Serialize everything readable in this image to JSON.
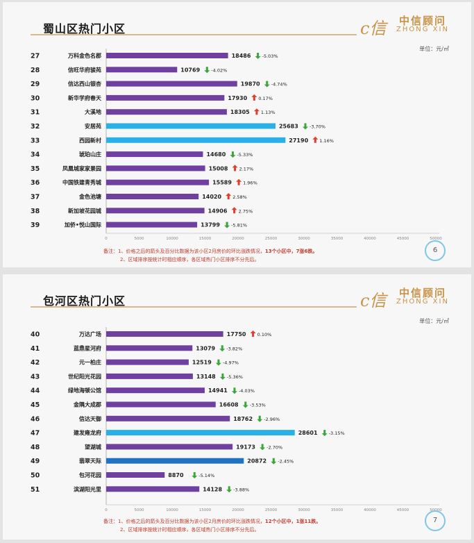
{
  "slides": [
    {
      "title": "蜀山区热门小区",
      "unit": "单位：元/㎡",
      "page_number": "6",
      "note_prefix": "备注：",
      "note_line1": "1、价格之后的箭头及百分比数据为该小区2月房价的环比涨跌情况，",
      "note_highlight": "13个小区中，7涨6跌。",
      "note_line2": "2、区域排序按统计时相应顺序，各区域热门小区排序不分先后。"
    },
    {
      "title": "包河区热门小区",
      "unit": "单位：元/㎡",
      "page_number": "7",
      "note_prefix": "备注：",
      "note_line1": "1、价格之后的箭头及百分比数据为该小区2月房价的环比涨跌情况，",
      "note_highlight": "12个小区中，1涨11跌。",
      "note_line2": "2、区域排序按统计时相应顺序，各区域热门小区排序不分先后。"
    }
  ],
  "logo": {
    "mark": "c信",
    "cn": "中信顾问",
    "en": "ZHONG XIN"
  },
  "colors": {
    "purple": "#7040a0",
    "blue": "#2ab0e6",
    "dark_blue": "#1f73c2",
    "up": "#e53b2c",
    "down": "#3aa63a"
  },
  "chart_data": [
    {
      "type": "bar",
      "orientation": "horizontal",
      "xlim": [
        0,
        50000
      ],
      "ticks": [
        0,
        5000,
        10000,
        15000,
        20000,
        25000,
        30000,
        35000,
        40000,
        45000,
        50000
      ],
      "rows": [
        {
          "rank": "27",
          "name": "万科金色名郡",
          "value": 18486,
          "dir": "down",
          "pct": "-5.03%",
          "color": "purple"
        },
        {
          "rank": "28",
          "name": "信旺华府骏苑",
          "value": 10769,
          "dir": "down",
          "pct": "-4.02%",
          "color": "purple"
        },
        {
          "rank": "29",
          "name": "信达西山银杏",
          "value": 19870,
          "dir": "down",
          "pct": "-4.74%",
          "color": "purple"
        },
        {
          "rank": "30",
          "name": "新华学府春天",
          "value": 17930,
          "dir": "up",
          "pct": "0.17%",
          "color": "purple"
        },
        {
          "rank": "31",
          "name": "大溪地",
          "value": 18305,
          "dir": "up",
          "pct": "1.13%",
          "color": "purple"
        },
        {
          "rank": "32",
          "name": "安居苑",
          "value": 25683,
          "dir": "down",
          "pct": "-3.70%",
          "color": "blue"
        },
        {
          "rank": "33",
          "name": "西园新村",
          "value": 27190,
          "dir": "up",
          "pct": "1.16%",
          "color": "blue"
        },
        {
          "rank": "34",
          "name": "琥珀山庄",
          "value": 14680,
          "dir": "down",
          "pct": "-5.33%",
          "color": "purple"
        },
        {
          "rank": "35",
          "name": "凤凰城家家景园",
          "value": 15008,
          "dir": "up",
          "pct": "2.17%",
          "color": "purple"
        },
        {
          "rank": "36",
          "name": "中国铁建青秀城",
          "value": 15589,
          "dir": "up",
          "pct": "1.96%",
          "color": "purple"
        },
        {
          "rank": "37",
          "name": "金色池塘",
          "value": 14020,
          "dir": "up",
          "pct": "2.58%",
          "color": "purple"
        },
        {
          "rank": "38",
          "name": "新加坡花园城",
          "value": 14906,
          "dir": "up",
          "pct": "2.75%",
          "color": "purple"
        },
        {
          "rank": "39",
          "name": "加侨•悦山国际",
          "value": 13799,
          "dir": "down",
          "pct": "-5.81%",
          "color": "purple"
        }
      ]
    },
    {
      "type": "bar",
      "orientation": "horizontal",
      "xlim": [
        0,
        50000
      ],
      "ticks": [
        0,
        5000,
        10000,
        15000,
        20000,
        25000,
        30000,
        35000,
        40000,
        45000,
        50000
      ],
      "rows": [
        {
          "rank": "40",
          "name": "万达广场",
          "value": 17750,
          "dir": "up",
          "pct": "0.10%",
          "color": "purple"
        },
        {
          "rank": "41",
          "name": "蓝鼎星河府",
          "value": 13079,
          "dir": "down",
          "pct": "-3.82%",
          "color": "purple"
        },
        {
          "rank": "42",
          "name": "元一柏庄",
          "value": 12519,
          "dir": "down",
          "pct": "-4.97%",
          "color": "purple"
        },
        {
          "rank": "43",
          "name": "世纪阳光花园",
          "value": 13148,
          "dir": "down",
          "pct": "-5.36%",
          "color": "purple"
        },
        {
          "rank": "44",
          "name": "绿地海顿公馆",
          "value": 14941,
          "dir": "down",
          "pct": "-4.03%",
          "color": "purple"
        },
        {
          "rank": "45",
          "name": "金隅大成郡",
          "value": 16608,
          "dir": "down",
          "pct": "-3.53%",
          "color": "purple"
        },
        {
          "rank": "46",
          "name": "信达天御",
          "value": 18762,
          "dir": "down",
          "pct": "-2.96%",
          "color": "purple"
        },
        {
          "rank": "47",
          "name": "建发雍龙府",
          "value": 28601,
          "dir": "down",
          "pct": "-3.15%",
          "color": "blue"
        },
        {
          "rank": "48",
          "name": "望湖城",
          "value": 19173,
          "dir": "down",
          "pct": "-2.70%",
          "color": "purple"
        },
        {
          "rank": "49",
          "name": "翡翠天际",
          "value": 20872,
          "dir": "down",
          "pct": "-2.45%",
          "color": "dark_blue"
        },
        {
          "rank": "50",
          "name": "包河花园",
          "value": 8870,
          "dir": "down",
          "pct": "-5.14%",
          "color": "purple"
        },
        {
          "rank": "51",
          "name": "滨湖阳光里",
          "value": 14128,
          "dir": "down",
          "pct": "-3.88%",
          "color": "purple"
        }
      ]
    }
  ]
}
